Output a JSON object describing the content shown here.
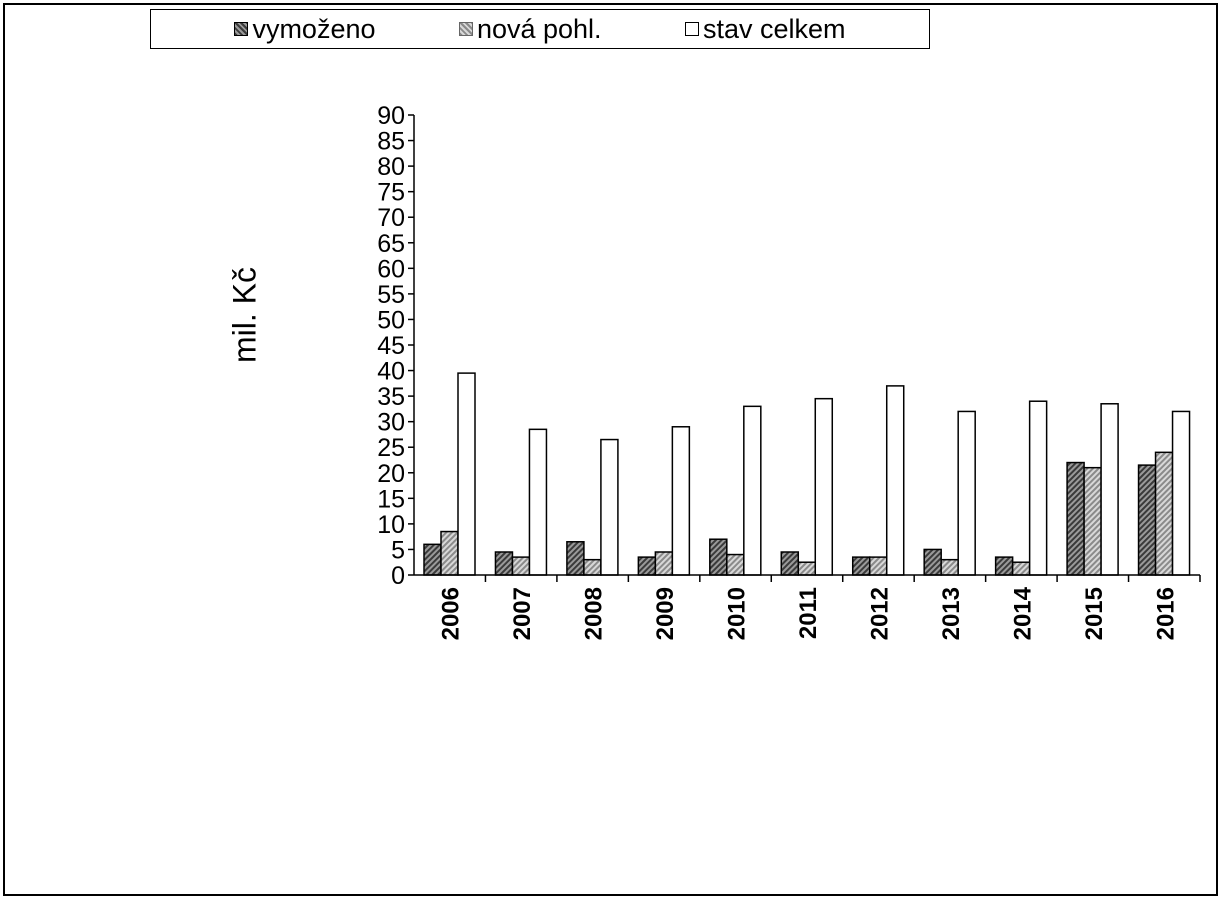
{
  "chart_data": {
    "type": "bar",
    "categories": [
      "2006",
      "2007",
      "2008",
      "2009",
      "2010",
      "2011",
      "2012",
      "2013",
      "2014",
      "2015",
      "2016"
    ],
    "series": [
      {
        "name": "vymoženo",
        "values": [
          6,
          4.5,
          6.5,
          3.5,
          7,
          4.5,
          3.5,
          5,
          3.5,
          22,
          21.5
        ]
      },
      {
        "name": "nová pohl.",
        "values": [
          8.5,
          3.5,
          3,
          4.5,
          4,
          2.5,
          3.5,
          3,
          2.5,
          21,
          24
        ]
      },
      {
        "name": "stav celkem",
        "values": [
          39.5,
          28.5,
          26.5,
          29,
          33,
          34.5,
          37,
          32,
          34,
          33.5,
          32
        ]
      }
    ],
    "title": "",
    "xlabel": "",
    "ylabel": "mil. Kč",
    "ylim": [
      0,
      90
    ],
    "yticks": [
      "0",
      "5",
      "10",
      "15",
      "20",
      "25",
      "30",
      "35",
      "40",
      "45",
      "50",
      "55",
      "60",
      "65",
      "70",
      "75",
      "80",
      "85",
      "90"
    ],
    "grid": false,
    "legend_position": "top"
  },
  "colors": {
    "vymozeno_dark": "#3a3a3a",
    "vymozeno_light": "#9a9a9a",
    "nova_dark": "#8a8a8a",
    "nova_light": "#d8d8d8",
    "stav": "#ffffff",
    "axis": "#000000"
  }
}
